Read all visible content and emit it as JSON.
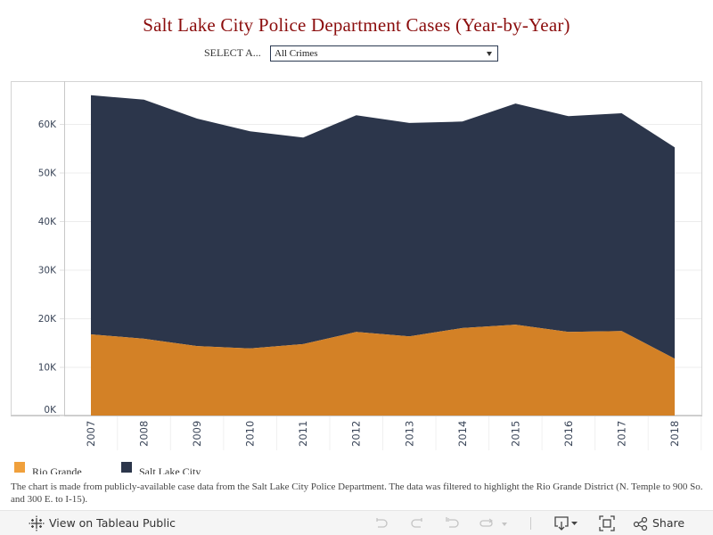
{
  "title": "Salt Lake City Police Department Cases (Year-by-Year)",
  "filter": {
    "label": "SELECT A...",
    "selected": "All Crimes"
  },
  "chart_data": {
    "type": "area",
    "stacked": true,
    "title": "Salt Lake City Police Department Cases (Year-by-Year)",
    "xlabel": "",
    "ylabel": "",
    "categories": [
      "2007",
      "2008",
      "2009",
      "2010",
      "2011",
      "2012",
      "2013",
      "2014",
      "2015",
      "2016",
      "2017",
      "2018"
    ],
    "series": [
      {
        "name": "Rio Grande",
        "color": "#d38126",
        "legend_color": "#f0a03c",
        "values": [
          16700,
          15800,
          14300,
          13800,
          14700,
          17200,
          16300,
          18000,
          18700,
          17200,
          17400,
          11700
        ]
      },
      {
        "name": "Salt Lake City",
        "color": "#2c364b",
        "legend_color": "#2c364b",
        "values": [
          49200,
          49200,
          46800,
          44700,
          42500,
          44600,
          43900,
          42500,
          45500,
          44400,
          44800,
          43500
        ]
      }
    ],
    "ylim": [
      0,
      66000
    ],
    "yticks": [
      0,
      10000,
      20000,
      30000,
      40000,
      50000,
      60000
    ],
    "ytick_labels": [
      "0K",
      "10K",
      "20K",
      "30K",
      "40K",
      "50K",
      "60K"
    ],
    "grid": true,
    "legend_position": "bottom-left"
  },
  "footnote": "The chart is made from publicly-available case data from the Salt Lake City Police Department. The data was filtered to highlight the Rio Grande District (N. Temple to 900 So. and 300 E. to I-15).",
  "toolbar": {
    "view_on_label": "View on Tableau Public",
    "share_label": "Share"
  }
}
